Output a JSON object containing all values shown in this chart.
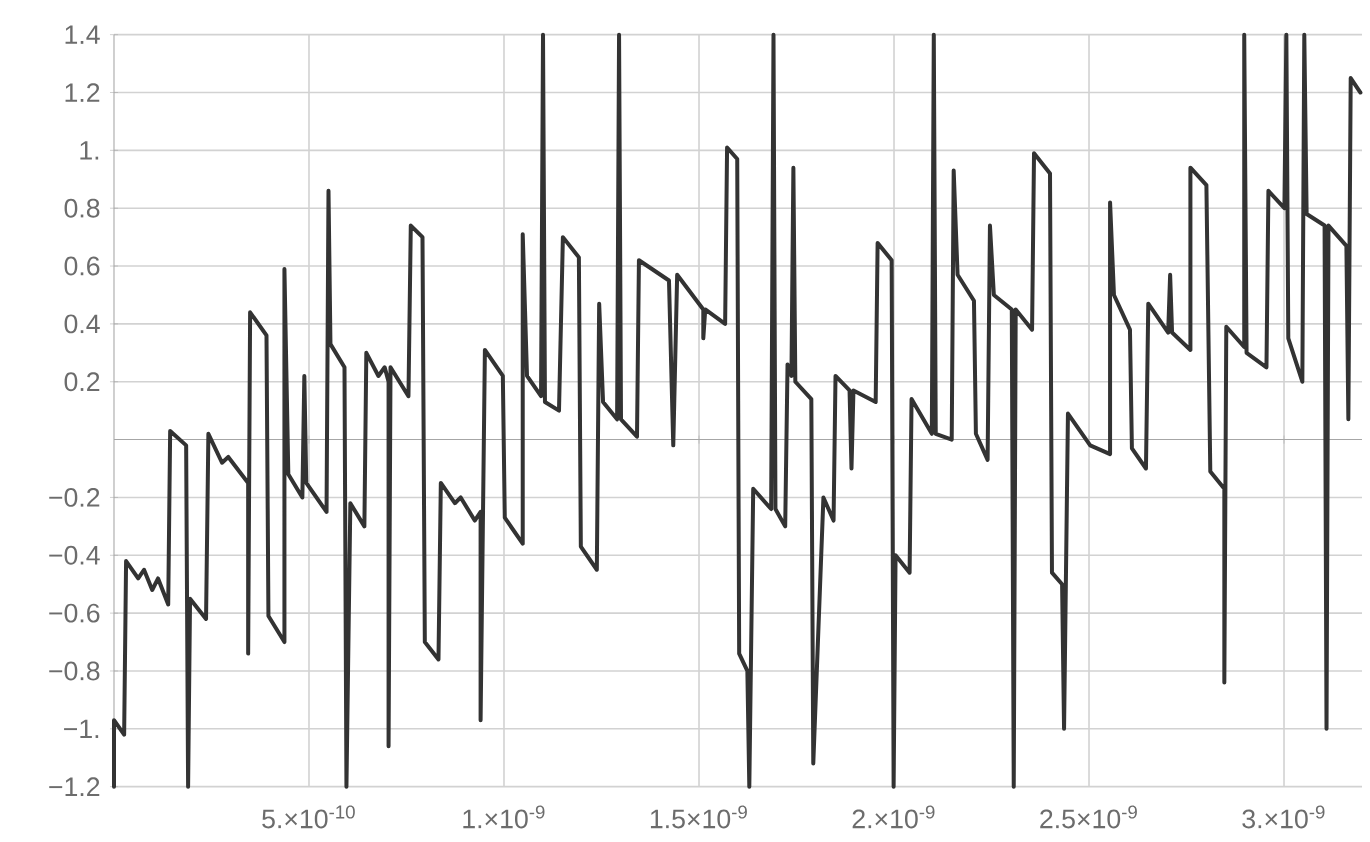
{
  "chart_data": {
    "type": "line",
    "xlim": [
      0,
      3.2e-09
    ],
    "ylim": [
      -1.2,
      1.4
    ],
    "xticks": [
      {
        "value": 5e-10,
        "label": "5.×10$^{-10}$"
      },
      {
        "value": 1e-09,
        "label": "1.×10$^{-9}$"
      },
      {
        "value": 1.5e-09,
        "label": "1.5×10$^{-9}$"
      },
      {
        "value": 2e-09,
        "label": "2.×10$^{-9}$"
      },
      {
        "value": 2.5e-09,
        "label": "2.5×10$^{-9}$"
      },
      {
        "value": 3e-09,
        "label": "3.×10$^{-9}$"
      }
    ],
    "yticks": [
      {
        "value": -1.2,
        "label": "−1.2"
      },
      {
        "value": -1,
        "label": "−1."
      },
      {
        "value": -0.8,
        "label": "−0.8"
      },
      {
        "value": -0.6,
        "label": "−0.6"
      },
      {
        "value": -0.4,
        "label": "−0.4"
      },
      {
        "value": -0.2,
        "label": "−0.2"
      },
      {
        "value": 0.2,
        "label": "0.2"
      },
      {
        "value": 0.4,
        "label": "0.4"
      },
      {
        "value": 0.6,
        "label": "0.6"
      },
      {
        "value": 0.8,
        "label": "0.8"
      },
      {
        "value": 1,
        "label": "1."
      },
      {
        "value": 1.2,
        "label": "1.2"
      },
      {
        "value": 1.4,
        "label": "1.4"
      }
    ],
    "grid": true,
    "series": [
      {
        "color": "#333333",
        "x": [
          0,
          0,
          2.6e-11,
          3.1e-11,
          6.2e-11,
          7.7e-11,
          9.8e-11,
          1.13e-10,
          1.39e-10,
          1.44e-10,
          1.85e-10,
          1.9e-10,
          1.95e-10,
          2.36e-10,
          2.42e-10,
          2.77e-10,
          2.93e-10,
          3.44e-10,
          3.44e-10,
          3.49e-10,
          3.91e-10,
          3.96e-10,
          4.37e-10,
          4.37e-10,
          4.47e-10,
          4.83e-10,
          4.88e-10,
          4.93e-10,
          5.45e-10,
          5.5e-10,
          5.55e-10,
          5.91e-10,
          5.96e-10,
          6.06e-10,
          6.42e-10,
          6.47e-10,
          6.78e-10,
          6.94e-10,
          7.04e-10,
          7.04e-10,
          7.09e-10,
          7.55e-10,
          7.61e-10,
          7.91e-10,
          7.97e-10,
          8.32e-10,
          8.38e-10,
          8.74e-10,
          8.89e-10,
          9.25e-10,
          9.4e-10,
          9.4e-10,
          9.51e-10,
          9.97e-10,
          1.002e-09,
          1.048e-09,
          1.048e-09,
          1.059e-09,
          1.095e-09,
          1.1e-09,
          1.105e-09,
          1.141e-09,
          1.151e-09,
          1.192e-09,
          1.197e-09,
          1.238e-09,
          1.244e-09,
          1.254e-09,
          1.29e-09,
          1.295e-09,
          1.3e-09,
          1.341e-09,
          1.346e-09,
          1.423e-09,
          1.434e-09,
          1.444e-09,
          1.511e-09,
          1.511e-09,
          1.516e-09,
          1.567e-09,
          1.572e-09,
          1.598e-09,
          1.603e-09,
          1.624e-09,
          1.629e-09,
          1.639e-09,
          1.685e-09,
          1.691e-09,
          1.696e-09,
          1.721e-09,
          1.727e-09,
          1.737e-09,
          1.742e-09,
          1.747e-09,
          1.788e-09,
          1.793e-09,
          1.819e-09,
          1.845e-09,
          1.85e-09,
          1.886e-09,
          1.891e-09,
          1.896e-09,
          1.953e-09,
          1.958e-09,
          1.994e-09,
          1.999e-09,
          2.004e-09,
          2.04e-09,
          2.045e-09,
          2.097e-09,
          2.102e-09,
          2.107e-09,
          2.148e-09,
          2.153e-09,
          2.163e-09,
          2.205e-09,
          2.21e-09,
          2.24e-09,
          2.246e-09,
          2.256e-09,
          2.302e-09,
          2.307e-09,
          2.312e-09,
          2.354e-09,
          2.359e-09,
          2.4e-09,
          2.405e-09,
          2.431e-09,
          2.436e-09,
          2.446e-09,
          2.503e-09,
          2.554e-09,
          2.554e-09,
          2.564e-09,
          2.605e-09,
          2.61e-09,
          2.646e-09,
          2.652e-09,
          2.703e-09,
          2.708e-09,
          2.713e-09,
          2.76e-09,
          2.76e-09,
          2.801e-09,
          2.811e-09,
          2.847e-09,
          2.847e-09,
          2.852e-09,
          2.898e-09,
          2.898e-09,
          2.904e-09,
          2.955e-09,
          2.96e-09,
          3.001e-09,
          3.006e-09,
          3.011e-09,
          3.047e-09,
          3.052e-09,
          3.058e-09,
          3.104e-09,
          3.109e-09,
          3.114e-09,
          3.16e-09,
          3.165e-09,
          3.171e-09,
          3.196e-09
        ],
        "values": [
          -1.2,
          -0.97,
          -1.02,
          -0.42,
          -0.48,
          -0.45,
          -0.52,
          -0.48,
          -0.57,
          0.03,
          -0.02,
          -1.2,
          -0.55,
          -0.62,
          0.02,
          -0.08,
          -0.06,
          -0.15,
          -0.74,
          0.44,
          0.36,
          -0.61,
          -0.7,
          0.59,
          -0.12,
          -0.2,
          0.22,
          -0.15,
          -0.25,
          0.86,
          0.33,
          0.25,
          -1.2,
          -0.22,
          -0.3,
          0.3,
          0.22,
          0.25,
          0.2,
          -1.06,
          0.25,
          0.15,
          0.74,
          0.7,
          -0.7,
          -0.76,
          -0.15,
          -0.22,
          -0.2,
          -0.28,
          -0.25,
          -0.97,
          0.31,
          0.22,
          -0.27,
          -0.36,
          0.71,
          0.22,
          0.15,
          1.4,
          0.13,
          0.1,
          0.7,
          0.63,
          -0.37,
          -0.45,
          0.47,
          0.13,
          0.07,
          1.4,
          0.07,
          0.01,
          0.62,
          0.55,
          -0.02,
          0.57,
          0.45,
          0.35,
          0.45,
          0.4,
          1.01,
          0.97,
          -0.74,
          -0.8,
          -1.2,
          -0.17,
          -0.24,
          1.4,
          -0.24,
          -0.3,
          0.26,
          0.22,
          0.94,
          0.2,
          0.14,
          -1.12,
          -0.2,
          -0.28,
          0.22,
          0.17,
          -0.1,
          0.17,
          0.13,
          0.68,
          0.62,
          -1.2,
          -0.4,
          -0.46,
          0.14,
          0.02,
          1.4,
          0.02,
          0.0,
          0.93,
          0.57,
          0.48,
          0.02,
          -0.07,
          0.74,
          0.5,
          0.45,
          -1.2,
          0.45,
          0.38,
          0.99,
          0.92,
          -0.46,
          -0.5,
          -1.0,
          0.09,
          -0.02,
          -0.05,
          0.82,
          0.5,
          0.38,
          -0.03,
          -0.1,
          0.47,
          0.37,
          0.57,
          0.37,
          0.31,
          0.94,
          0.88,
          -0.11,
          -0.17,
          -0.84,
          0.39,
          0.32,
          1.4,
          0.3,
          0.25,
          0.86,
          0.8,
          1.4,
          0.35,
          0.2,
          1.4,
          0.78,
          0.74,
          -1.0,
          0.74,
          0.67,
          0.07,
          1.25,
          1.2
        ]
      }
    ]
  }
}
